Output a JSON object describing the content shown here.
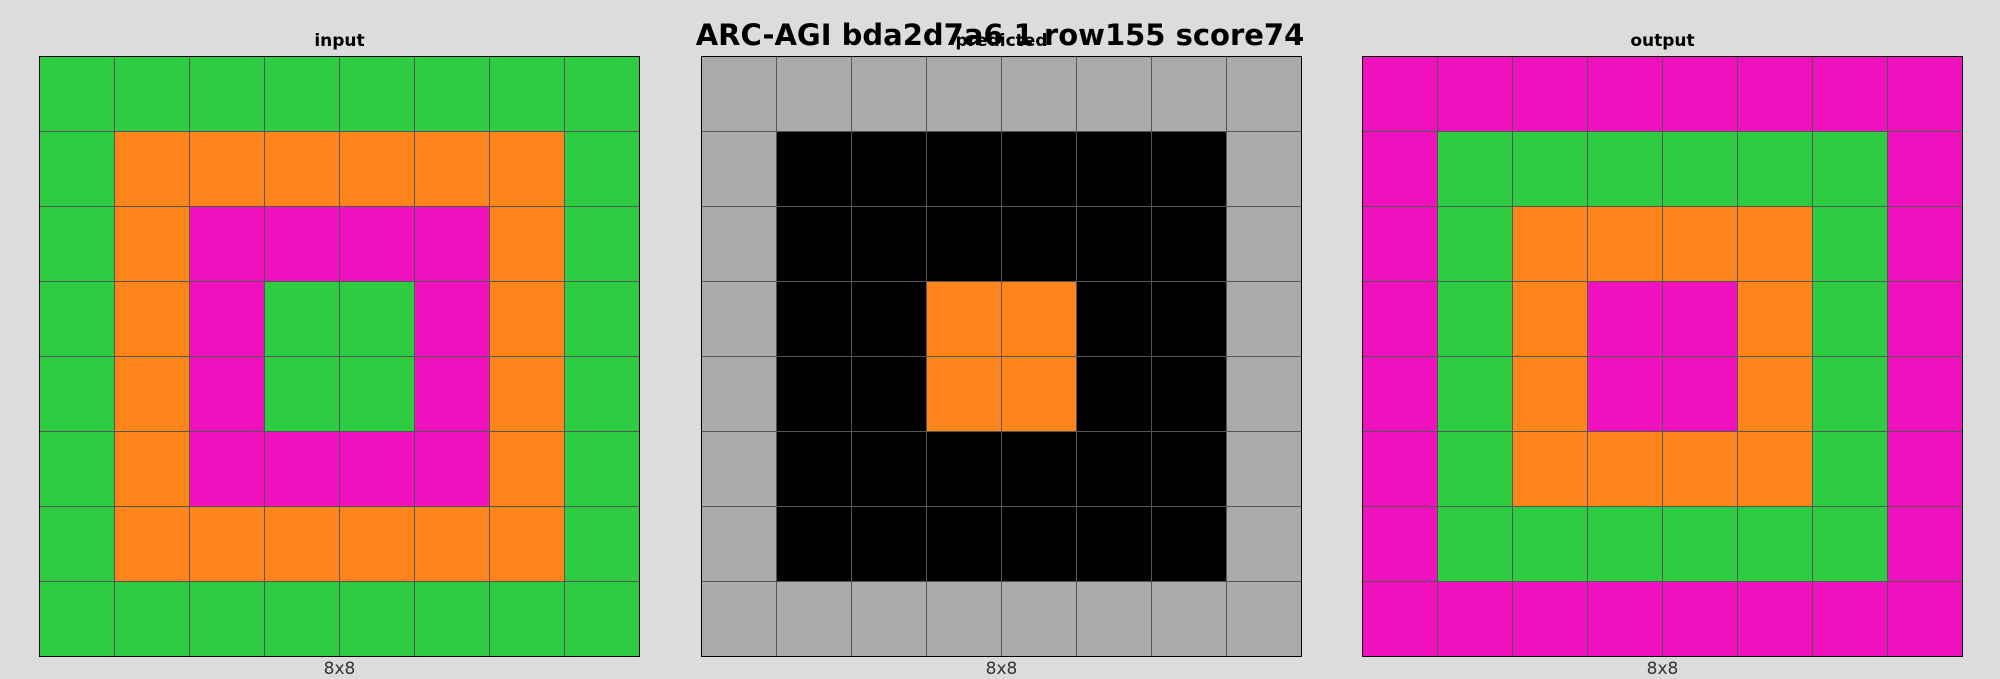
{
  "title": "ARC-AGI bda2d7a6 1 row155 score74",
  "palette": {
    "0": "#000000",
    "3": "#2ecc40",
    "5": "#aaaaaa",
    "6": "#f012be",
    "7": "#ff851b"
  },
  "panels": [
    {
      "label": "input",
      "size": "8x8",
      "grid": [
        [
          3,
          3,
          3,
          3,
          3,
          3,
          3,
          3
        ],
        [
          3,
          7,
          7,
          7,
          7,
          7,
          7,
          3
        ],
        [
          3,
          7,
          6,
          6,
          6,
          6,
          7,
          3
        ],
        [
          3,
          7,
          6,
          3,
          3,
          6,
          7,
          3
        ],
        [
          3,
          7,
          6,
          3,
          3,
          6,
          7,
          3
        ],
        [
          3,
          7,
          6,
          6,
          6,
          6,
          7,
          3
        ],
        [
          3,
          7,
          7,
          7,
          7,
          7,
          7,
          3
        ],
        [
          3,
          3,
          3,
          3,
          3,
          3,
          3,
          3
        ]
      ]
    },
    {
      "label": "predicted",
      "size": "8x8",
      "grid": [
        [
          5,
          5,
          5,
          5,
          5,
          5,
          5,
          5
        ],
        [
          5,
          0,
          0,
          0,
          0,
          0,
          0,
          5
        ],
        [
          5,
          0,
          0,
          0,
          0,
          0,
          0,
          5
        ],
        [
          5,
          0,
          0,
          7,
          7,
          0,
          0,
          5
        ],
        [
          5,
          0,
          0,
          7,
          7,
          0,
          0,
          5
        ],
        [
          5,
          0,
          0,
          0,
          0,
          0,
          0,
          5
        ],
        [
          5,
          0,
          0,
          0,
          0,
          0,
          0,
          5
        ],
        [
          5,
          5,
          5,
          5,
          5,
          5,
          5,
          5
        ]
      ]
    },
    {
      "label": "output",
      "size": "8x8",
      "grid": [
        [
          6,
          6,
          6,
          6,
          6,
          6,
          6,
          6
        ],
        [
          6,
          3,
          3,
          3,
          3,
          3,
          3,
          6
        ],
        [
          6,
          3,
          7,
          7,
          7,
          7,
          3,
          6
        ],
        [
          6,
          3,
          7,
          6,
          6,
          7,
          3,
          6
        ],
        [
          6,
          3,
          7,
          6,
          6,
          7,
          3,
          6
        ],
        [
          6,
          3,
          7,
          7,
          7,
          7,
          3,
          6
        ],
        [
          6,
          3,
          3,
          3,
          3,
          3,
          3,
          6
        ],
        [
          6,
          6,
          6,
          6,
          6,
          6,
          6,
          6
        ]
      ]
    }
  ]
}
